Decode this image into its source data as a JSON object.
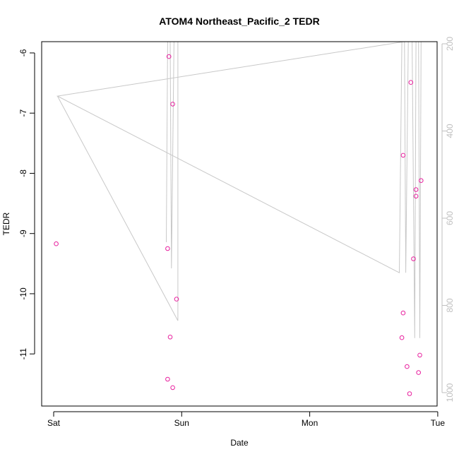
{
  "chart_data": {
    "type": "scatter",
    "title": "ATOM4 Northeast_Pacific_2 TEDR",
    "xlabel": "Date",
    "ylabel": "TEDR",
    "xlim": [
      0,
      3
    ],
    "ylim": [
      -11.88,
      -5.85
    ],
    "x_ticks": [
      {
        "value": 0,
        "label": "Sat"
      },
      {
        "value": 1,
        "label": "Sun"
      },
      {
        "value": 2,
        "label": "Mon"
      },
      {
        "value": 3,
        "label": "Tue"
      }
    ],
    "y_ticks": [
      -11,
      -10,
      -9,
      -8,
      -7,
      -6
    ],
    "y2_ticks": [
      200,
      400,
      600,
      800,
      1000
    ],
    "y2_range": [
      200,
      1040
    ],
    "y2_inverted": true,
    "colors": {
      "points": "#e8209e",
      "line": "#c8c8c8",
      "axis": "#000000",
      "axis_right": "#bfbfbf"
    },
    "series": [
      {
        "marker": "open-circle",
        "points": [
          {
            "x": 0.02,
            "y": -9.17
          },
          {
            "x": 0.89,
            "y": -9.25
          },
          {
            "x": 0.89,
            "y": -11.42
          },
          {
            "x": 0.9,
            "y": -6.06
          },
          {
            "x": 0.91,
            "y": -10.72
          },
          {
            "x": 0.93,
            "y": -6.85
          },
          {
            "x": 0.93,
            "y": -11.56
          },
          {
            "x": 0.96,
            "y": -10.09
          },
          {
            "x": 2.72,
            "y": -10.73
          },
          {
            "x": 2.73,
            "y": -7.7
          },
          {
            "x": 2.73,
            "y": -10.32
          },
          {
            "x": 2.76,
            "y": -11.21
          },
          {
            "x": 2.78,
            "y": -11.66
          },
          {
            "x": 2.79,
            "y": -6.49
          },
          {
            "x": 2.81,
            "y": -9.42
          },
          {
            "x": 2.83,
            "y": -8.27
          },
          {
            "x": 2.83,
            "y": -8.38
          },
          {
            "x": 2.85,
            "y": -11.31
          },
          {
            "x": 2.86,
            "y": -11.02
          },
          {
            "x": 2.87,
            "y": -8.12
          }
        ]
      },
      {
        "axis": "right",
        "style": "line",
        "points": [
          {
            "x": 0.03,
            "y": 320
          },
          {
            "x": 0.97,
            "y": 835
          },
          {
            "x": 0.97,
            "y": 195
          },
          {
            "x": 0.94,
            "y": 195
          },
          {
            "x": 0.92,
            "y": 715
          },
          {
            "x": 0.91,
            "y": 195
          },
          {
            "x": 0.89,
            "y": 195
          },
          {
            "x": 0.88,
            "y": 655
          },
          {
            "x": 0.89,
            "y": 195
          },
          {
            "x": 2.72,
            "y": 195
          },
          {
            "x": 2.7,
            "y": 725
          },
          {
            "x": 0.03,
            "y": 320
          },
          {
            "x": 2.74,
            "y": 195
          },
          {
            "x": 2.75,
            "y": 725
          },
          {
            "x": 2.77,
            "y": 195
          },
          {
            "x": 2.8,
            "y": 195
          },
          {
            "x": 2.82,
            "y": 875
          },
          {
            "x": 2.83,
            "y": 195
          },
          {
            "x": 2.85,
            "y": 195
          },
          {
            "x": 2.86,
            "y": 875
          },
          {
            "x": 2.87,
            "y": 195
          }
        ]
      }
    ]
  }
}
